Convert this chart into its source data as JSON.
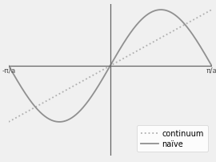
{
  "title": "",
  "xlabel": "",
  "ylabel": "",
  "xlim": [
    -3.14159265,
    3.14159265
  ],
  "ylim": [
    -1.6,
    1.1
  ],
  "x_ticks": [
    -3.14159265,
    3.14159265
  ],
  "x_tick_labels": [
    "-π/a",
    "π/a"
  ],
  "background_color": "#f0f0f0",
  "continuum_color": "#b0b0b0",
  "naive_color": "#909090",
  "continuum_linestyle": "dotted",
  "naive_linestyle": "solid",
  "legend_labels": [
    "continuum",
    "naïve"
  ],
  "legend_fontsize": 7,
  "line_linewidth": 1.3,
  "axis_color": "#666666",
  "axis_linewidth": 0.9
}
